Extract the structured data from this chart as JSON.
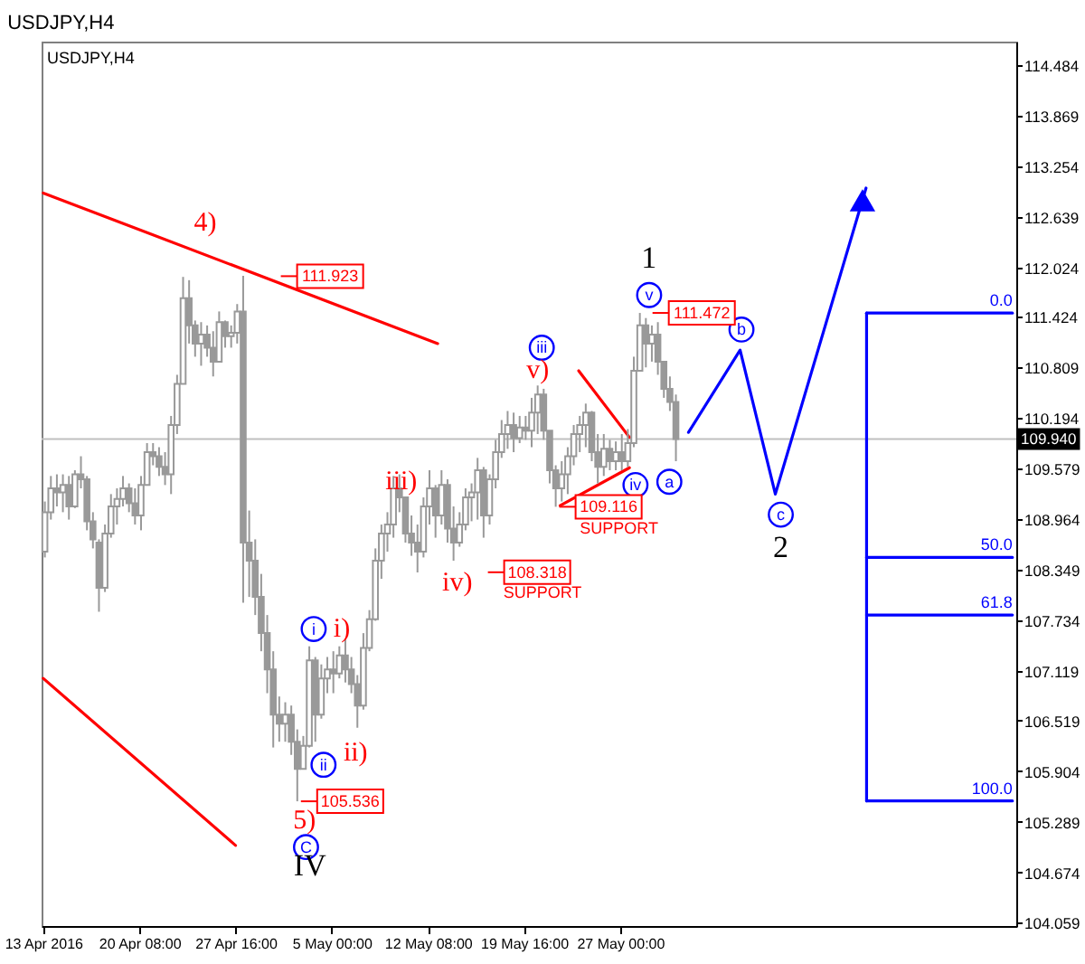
{
  "chart_data": {
    "type": "candlestick",
    "title": "USDJPY,H4",
    "subtitle": "USDJPY,H4",
    "color": "#999999",
    "x": [
      "2016-04-13T03:00",
      "2016-04-13T14:00",
      "2016-04-14T01:00",
      "2016-04-14T12:00",
      "2016-04-14T23:00",
      "2016-04-15T10:00",
      "2016-04-15T21:00",
      "2016-04-16T08:00",
      "2016-04-16T19:00",
      "2016-04-17T06:00",
      "2016-04-17T17:00",
      "2016-04-18T04:00",
      "2016-04-18T15:00",
      "2016-04-19T02:00",
      "2016-04-19T13:00",
      "2016-04-20T00:00",
      "2016-04-20T11:00",
      "2016-04-20T22:00",
      "2016-04-21T09:00",
      "2016-04-21T20:00",
      "2016-04-22T07:00",
      "2016-04-22T18:00",
      "2016-04-23T05:00",
      "2016-04-23T16:00",
      "2016-04-24T03:00",
      "2016-04-24T14:00",
      "2016-04-25T01:00",
      "2016-04-25T12:00",
      "2016-04-25T23:00",
      "2016-04-26T10:00",
      "2016-04-26T21:00",
      "2016-04-27T08:00",
      "2016-04-27T19:00",
      "2016-04-28T06:00",
      "2016-04-28T17:00",
      "2016-04-29T04:00",
      "2016-04-29T15:00",
      "2016-04-30T02:00",
      "2016-04-30T13:00",
      "2016-05-01T00:00",
      "2016-05-01T11:00",
      "2016-05-01T22:00",
      "2016-05-02T09:00",
      "2016-05-02T20:00",
      "2016-05-03T07:00",
      "2016-05-03T18:00",
      "2016-05-04T05:00",
      "2016-05-04T16:00",
      "2016-05-05T03:00",
      "2016-05-05T14:00",
      "2016-05-06T01:00",
      "2016-05-06T12:00",
      "2016-05-06T23:00",
      "2016-05-07T10:00",
      "2016-05-07T21:00",
      "2016-05-08T08:00",
      "2016-05-08T19:00",
      "2016-05-09T06:00",
      "2016-05-09T17:00",
      "2016-05-10T04:00",
      "2016-05-10T15:00",
      "2016-05-11T02:00",
      "2016-05-11T13:00",
      "2016-05-12T00:00",
      "2016-05-12T11:00",
      "2016-05-12T22:00",
      "2016-05-13T09:00",
      "2016-05-13T20:00",
      "2016-05-14T07:00",
      "2016-05-14T18:00",
      "2016-05-15T05:00",
      "2016-05-15T16:00",
      "2016-05-16T03:00",
      "2016-05-16T14:00",
      "2016-05-17T01:00",
      "2016-05-17T12:00",
      "2016-05-17T23:00",
      "2016-05-18T10:00",
      "2016-05-18T21:00",
      "2016-05-19T08:00",
      "2016-05-19T19:00",
      "2016-05-20T06:00",
      "2016-05-20T17:00",
      "2016-05-21T04:00",
      "2016-05-21T15:00",
      "2016-05-22T02:00",
      "2016-05-22T13:00",
      "2016-05-23T00:00",
      "2016-05-23T11:00",
      "2016-05-23T22:00",
      "2016-05-24T09:00",
      "2016-05-24T20:00",
      "2016-05-25T07:00",
      "2016-05-25T18:00",
      "2016-05-26T05:00",
      "2016-05-26T16:00",
      "2016-05-27T03:00",
      "2016-05-27T14:00",
      "2016-05-28T01:00",
      "2016-05-28T12:00",
      "2016-05-28T23:00",
      "2016-05-29T10:00",
      "2016-05-29T21:00",
      "2016-05-30T08:00",
      "2016-05-30T19:00",
      "2016-05-31T06:00"
    ],
    "ohlc": [
      [
        108.57,
        109.18,
        108.5,
        109.05
      ],
      [
        109.05,
        109.49,
        108.96,
        109.34
      ],
      [
        109.34,
        109.51,
        109.12,
        109.29
      ],
      [
        109.29,
        109.51,
        109.05,
        109.38
      ],
      [
        109.38,
        109.49,
        108.96,
        109.12
      ],
      [
        109.12,
        109.56,
        109.1,
        109.51
      ],
      [
        109.51,
        109.73,
        109.34,
        109.45
      ],
      [
        109.45,
        109.49,
        108.83,
        108.94
      ],
      [
        108.94,
        109.05,
        108.61,
        108.72
      ],
      [
        108.68,
        108.72,
        107.84,
        108.13
      ],
      [
        108.13,
        108.9,
        108.08,
        108.79
      ],
      [
        108.79,
        109.27,
        108.74,
        109.12
      ],
      [
        109.12,
        109.34,
        108.9,
        109.21
      ],
      [
        109.21,
        109.49,
        109.12,
        109.34
      ],
      [
        109.34,
        109.4,
        109.05,
        109.16
      ],
      [
        109.16,
        109.34,
        108.9,
        109.01
      ],
      [
        109.01,
        109.49,
        108.83,
        109.38
      ],
      [
        109.38,
        109.89,
        109.38,
        109.78
      ],
      [
        109.78,
        109.89,
        109.62,
        109.73
      ],
      [
        109.73,
        109.84,
        109.49,
        109.6
      ],
      [
        109.6,
        109.78,
        109.38,
        109.51
      ],
      [
        109.51,
        110.22,
        109.27,
        110.11
      ],
      [
        110.11,
        110.72,
        110.0,
        110.61
      ],
      [
        110.61,
        111.91,
        110.61,
        111.65
      ],
      [
        111.65,
        111.87,
        111.1,
        111.32
      ],
      [
        111.32,
        111.38,
        110.94,
        111.1
      ],
      [
        111.1,
        111.36,
        110.83,
        111.21
      ],
      [
        111.21,
        111.32,
        110.94,
        111.05
      ],
      [
        111.05,
        111.25,
        110.7,
        110.88
      ],
      [
        110.88,
        111.49,
        110.88,
        111.36
      ],
      [
        111.36,
        111.38,
        111.05,
        111.19
      ],
      [
        111.19,
        111.32,
        111.05,
        111.23
      ],
      [
        111.23,
        111.58,
        111.1,
        111.49
      ],
      [
        111.49,
        111.923,
        107.95,
        108.68
      ],
      [
        108.68,
        109.07,
        108.02,
        108.46
      ],
      [
        108.46,
        108.72,
        107.8,
        108.02
      ],
      [
        108.02,
        108.3,
        107.36,
        107.58
      ],
      [
        107.58,
        107.8,
        106.85,
        107.14
      ],
      [
        107.14,
        107.36,
        106.19,
        106.59
      ],
      [
        106.59,
        106.81,
        106.26,
        106.48
      ],
      [
        106.48,
        106.74,
        106.26,
        106.59
      ],
      [
        106.59,
        106.7,
        106.1,
        106.26
      ],
      [
        106.26,
        106.41,
        105.536,
        105.93
      ],
      [
        105.93,
        106.33,
        105.93,
        106.21
      ],
      [
        106.21,
        107.42,
        106.19,
        107.25
      ],
      [
        107.25,
        107.29,
        106.26,
        106.59
      ],
      [
        106.59,
        107.2,
        106.54,
        107.03
      ],
      [
        107.03,
        107.29,
        106.85,
        107.14
      ],
      [
        107.14,
        107.36,
        106.85,
        107.09
      ],
      [
        107.09,
        107.42,
        107.03,
        107.31
      ],
      [
        107.31,
        107.51,
        106.98,
        107.14
      ],
      [
        107.14,
        107.29,
        106.85,
        106.96
      ],
      [
        106.96,
        107.07,
        106.43,
        106.7
      ],
      [
        106.7,
        107.58,
        106.65,
        107.4
      ],
      [
        107.4,
        107.86,
        107.36,
        107.75
      ],
      [
        107.75,
        108.61,
        107.73,
        108.46
      ],
      [
        108.46,
        108.9,
        108.24,
        108.79
      ],
      [
        108.79,
        109.05,
        108.57,
        108.9
      ],
      [
        108.9,
        109.49,
        108.74,
        109.34
      ],
      [
        109.34,
        109.51,
        109.05,
        109.23
      ],
      [
        109.23,
        109.23,
        108.68,
        108.79
      ],
      [
        108.79,
        109.01,
        108.52,
        108.68
      ],
      [
        108.68,
        108.9,
        108.318,
        108.57
      ],
      [
        108.57,
        109.23,
        108.5,
        109.12
      ],
      [
        109.12,
        109.56,
        108.9,
        109.34
      ],
      [
        109.34,
        109.38,
        108.74,
        109.01
      ],
      [
        109.01,
        109.56,
        108.9,
        109.38
      ],
      [
        109.38,
        109.45,
        108.68,
        108.85
      ],
      [
        108.85,
        109.12,
        108.46,
        108.68
      ],
      [
        108.68,
        109.05,
        108.63,
        108.9
      ],
      [
        108.9,
        109.34,
        108.83,
        109.23
      ],
      [
        109.23,
        109.4,
        108.94,
        109.29
      ],
      [
        109.29,
        109.71,
        108.96,
        109.56
      ],
      [
        109.56,
        109.6,
        108.74,
        109.01
      ],
      [
        109.01,
        109.51,
        108.9,
        109.45
      ],
      [
        109.45,
        109.93,
        109.34,
        109.78
      ],
      [
        109.78,
        110.17,
        109.71,
        110.0
      ],
      [
        110.0,
        110.28,
        109.82,
        110.11
      ],
      [
        110.11,
        110.26,
        109.78,
        109.95
      ],
      [
        109.95,
        110.22,
        109.89,
        110.08
      ],
      [
        110.08,
        110.22,
        109.93,
        110.04
      ],
      [
        110.04,
        110.44,
        109.84,
        110.26
      ],
      [
        110.26,
        110.59,
        110.0,
        110.48
      ],
      [
        110.48,
        110.55,
        109.93,
        110.04
      ],
      [
        110.04,
        110.04,
        109.4,
        109.56
      ],
      [
        109.56,
        109.62,
        109.116,
        109.34
      ],
      [
        109.34,
        109.67,
        109.18,
        109.51
      ],
      [
        109.51,
        109.84,
        109.27,
        109.73
      ],
      [
        109.73,
        110.11,
        109.62,
        110.0
      ],
      [
        110.0,
        110.22,
        109.78,
        110.11
      ],
      [
        110.11,
        110.37,
        109.84,
        110.26
      ],
      [
        110.26,
        110.28,
        109.67,
        109.78
      ],
      [
        109.78,
        110.0,
        109.4,
        109.6
      ],
      [
        109.6,
        110.0,
        109.49,
        109.82
      ],
      [
        109.82,
        109.93,
        109.56,
        109.67
      ],
      [
        109.67,
        109.91,
        109.56,
        109.78
      ],
      [
        109.78,
        110.0,
        109.56,
        109.67
      ],
      [
        109.67,
        110.06,
        109.6,
        109.89
      ],
      [
        109.89,
        110.94,
        109.84,
        110.77
      ],
      [
        110.77,
        111.472,
        110.77,
        111.32
      ],
      [
        111.32,
        111.41,
        110.81,
        111.1
      ],
      [
        111.1,
        111.32,
        110.88,
        111.21
      ],
      [
        111.21,
        111.36,
        110.72,
        110.88
      ],
      [
        110.88,
        110.88,
        110.44,
        110.55
      ],
      [
        110.55,
        110.7,
        110.28,
        110.39
      ],
      [
        110.39,
        110.48,
        109.67,
        109.94
      ]
    ],
    "xlim": [
      "2016-04-12T21:00",
      "2016-06-26T05:00"
    ],
    "ylim": [
      104.02,
      114.77
    ],
    "xticks": [
      {
        "value": "2016-04-13",
        "label": "13 Apr 2016"
      },
      {
        "value": "2016-04-20T08:00",
        "label": "20 Apr 08:00"
      },
      {
        "value": "2016-04-27T16:00",
        "label": "27 Apr 16:00"
      },
      {
        "value": "2016-05-05T00:00",
        "label": "5 May 00:00"
      },
      {
        "value": "2016-05-12T08:00",
        "label": "12 May 08:00"
      },
      {
        "value": "2016-05-19T16:00",
        "label": "19 May 16:00"
      },
      {
        "value": "2016-05-27T00:00",
        "label": "27 May 00:00"
      }
    ],
    "yticks": [
      114.484,
      113.869,
      113.254,
      112.639,
      112.024,
      111.424,
      110.809,
      110.194,
      109.579,
      108.964,
      108.349,
      107.734,
      107.119,
      106.519,
      105.904,
      105.289,
      104.674,
      104.059
    ],
    "ref_lines": [
      {
        "axis": "y",
        "value": 109.94,
        "label": "109.940",
        "color": "#c0c0c0"
      }
    ],
    "series": [
      {
        "type": "line",
        "color": "#ff0000",
        "x": [
          "2016-04-13T00:00",
          "2016-05-13T02:00"
        ],
        "values": [
          112.93,
          111.1
        ]
      },
      {
        "type": "line",
        "color": "#ff0000",
        "x": [
          "2016-04-13T00:00",
          "2016-04-27T16:00"
        ],
        "values": [
          107.03,
          105.0
        ]
      },
      {
        "type": "line",
        "color": "#ff0000",
        "x": [
          "2016-05-23T20:00",
          "2016-05-27T17:00"
        ],
        "values": [
          110.77,
          109.96
        ]
      },
      {
        "type": "line",
        "color": "#ff0000",
        "x": [
          "2016-05-22T10:00",
          "2016-05-27T17:00"
        ],
        "values": [
          109.13,
          109.59
        ]
      },
      {
        "type": "line",
        "color": "#0000ff",
        "x": [
          "2016-06-01T05:00",
          "2016-06-05T03:30",
          "2016-06-07T20:00",
          "2016-06-14T18:00"
        ],
        "values": [
          110.02,
          111.02,
          109.27,
          112.99
        ]
      },
      {
        "type": "scatter",
        "marker": "triangle",
        "color": "#0000ff",
        "x": [
          "2016-06-14T11:30"
        ],
        "values": [
          112.84
        ]
      },
      {
        "type": "line",
        "color": "#0000ff",
        "x": [
          "2016-06-14T19:00",
          "2016-06-14T19:00"
        ],
        "values": [
          111.47,
          105.54
        ]
      },
      {
        "type": "line",
        "name": "0.0",
        "color": "#0000ff",
        "x": [
          "2016-06-14T19:00",
          "2016-06-25T22:00"
        ],
        "values": [
          111.47,
          111.47
        ]
      },
      {
        "type": "line",
        "name": "50.0",
        "color": "#0000ff",
        "x": [
          "2016-06-14T19:00",
          "2016-06-25T22:00"
        ],
        "values": [
          108.5,
          108.5
        ]
      },
      {
        "type": "line",
        "name": "61.8",
        "color": "#0000ff",
        "x": [
          "2016-06-14T19:00",
          "2016-06-25T22:00"
        ],
        "values": [
          107.8,
          107.8
        ]
      },
      {
        "type": "line",
        "name": "100.0",
        "color": "#0000ff",
        "x": [
          "2016-06-14T19:00",
          "2016-06-25T22:00"
        ],
        "values": [
          105.54,
          105.54
        ]
      },
      {
        "type": "scatter",
        "name": "i",
        "marker": "circle",
        "color": "#0000ff",
        "x": [
          "2016-05-03T15:00"
        ],
        "values": [
          107.63
        ]
      },
      {
        "type": "scatter",
        "name": "ii",
        "marker": "circle",
        "color": "#0000ff",
        "x": [
          "2016-05-04T09:00"
        ],
        "values": [
          105.98
        ]
      },
      {
        "type": "scatter",
        "name": "C",
        "marker": "circle",
        "color": "#0000ff",
        "x": [
          "2016-05-03T01:00"
        ],
        "values": [
          104.98
        ]
      },
      {
        "type": "scatter",
        "name": "iii",
        "marker": "circle",
        "color": "#0000ff",
        "x": [
          "2016-05-21T00:30"
        ],
        "values": [
          111.05
        ]
      },
      {
        "type": "scatter",
        "name": "iv",
        "marker": "circle",
        "color": "#0000ff",
        "x": [
          "2016-05-28T04:00"
        ],
        "values": [
          109.38
        ]
      },
      {
        "type": "scatter",
        "name": "v",
        "marker": "circle",
        "color": "#0000ff",
        "x": [
          "2016-05-29T05:00"
        ],
        "values": [
          111.69
        ]
      },
      {
        "type": "scatter",
        "name": "a",
        "marker": "circle",
        "color": "#0000ff",
        "x": [
          "2016-05-30T18:00"
        ],
        "values": [
          109.42
        ]
      },
      {
        "type": "scatter",
        "name": "b",
        "marker": "circle",
        "color": "#0000ff",
        "x": [
          "2016-06-05T06:00"
        ],
        "values": [
          111.27
        ]
      },
      {
        "type": "scatter",
        "name": "c",
        "marker": "circle",
        "color": "#0000ff",
        "x": [
          "2016-06-08T06:00"
        ],
        "values": [
          109.02
        ]
      }
    ],
    "annotations": [
      {
        "text": "4)",
        "x": "2016-04-28T06:00",
        "y": 111.923
      },
      {
        "text": "5)",
        "x": "2016-05-02T09:00",
        "y": 105.536
      },
      {
        "text": "i)",
        "x": "2016-05-06T01:00",
        "y": 107.51
      },
      {
        "text": "ii)",
        "x": "2016-05-06T23:00",
        "y": 106.43
      },
      {
        "text": "iii)",
        "x": "2016-05-10T04:00",
        "y": 109.51
      },
      {
        "text": "iv)",
        "x": "2016-05-11T13:00",
        "y": 108.318
      },
      {
        "text": "v)",
        "x": "2016-05-20T17:00",
        "y": 110.59
      },
      {
        "text": "1",
        "x": "2016-05-28T12:00",
        "y": 111.472
      },
      {
        "text": "2",
        "x": "2016-06-07T20:00",
        "y": 109.27
      },
      {
        "text": "IV",
        "x": "2016-05-02T09:00",
        "y": 105.536
      },
      {
        "text": "105.536",
        "x": "2016-05-02T09:00",
        "y": 105.536
      },
      {
        "text": "111.472",
        "x": "2016-05-28T12:00",
        "y": 111.472
      },
      {
        "text": "109.116",
        "x": "2016-05-22T02:00",
        "y": 109.116
      },
      {
        "text": "SUPPORT",
        "x": "2016-05-22T02:00",
        "y": 109.116
      },
      "111.923",
      "108.318",
      "SUPPORT"
    ]
  }
}
